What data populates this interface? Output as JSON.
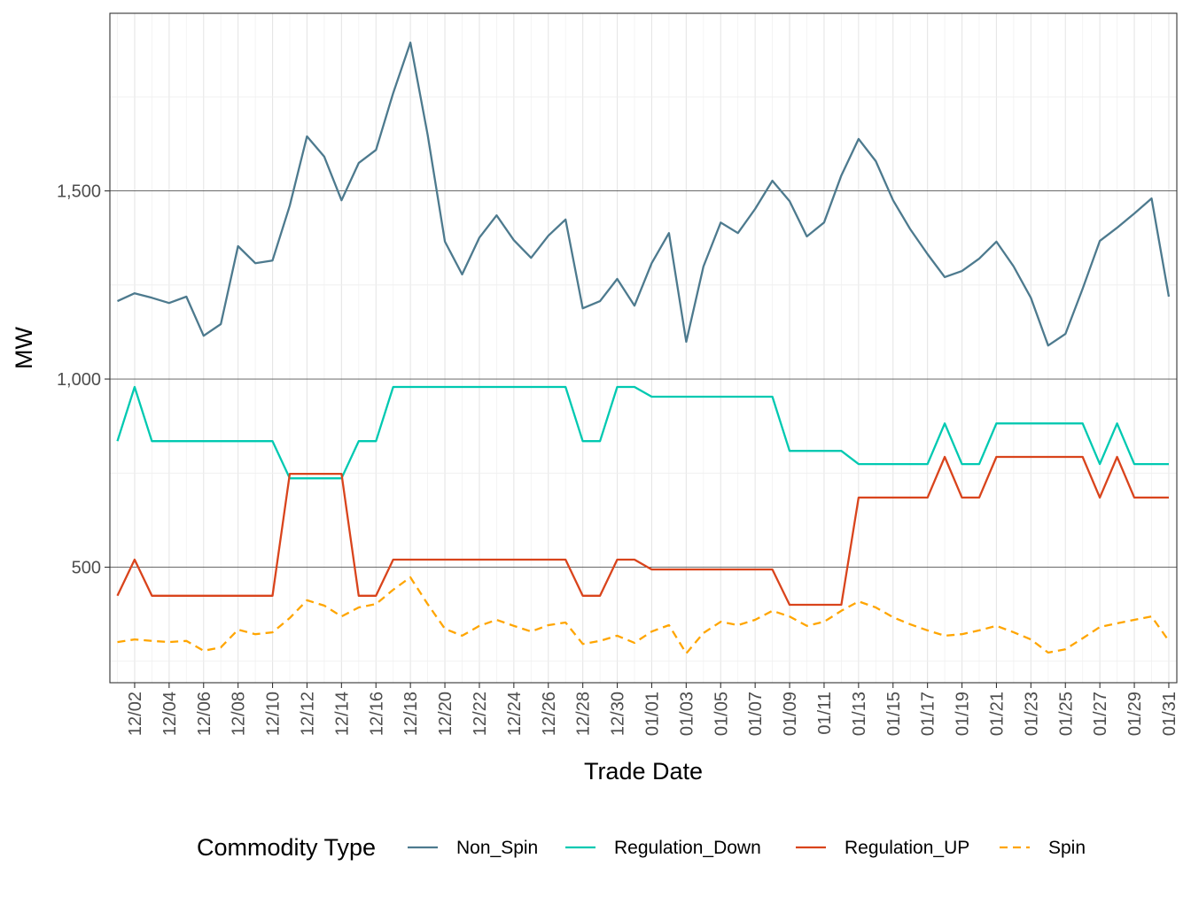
{
  "chart_data": {
    "type": "line",
    "xlabel": "Trade Date",
    "ylabel": "MW",
    "ylim": [
      193,
      1972
    ],
    "grid": true,
    "legend_placement": "bottom",
    "legend_title": "Commodity Type",
    "y_ticks": [
      500,
      1000,
      1500
    ],
    "y_tick_labels": [
      "500",
      "1,000",
      "1,500"
    ],
    "x": [
      "12/01",
      "12/02",
      "12/03",
      "12/04",
      "12/05",
      "12/06",
      "12/07",
      "12/08",
      "12/09",
      "12/10",
      "12/11",
      "12/12",
      "12/13",
      "12/14",
      "12/15",
      "12/16",
      "12/17",
      "12/18",
      "12/19",
      "12/20",
      "12/21",
      "12/22",
      "12/23",
      "12/24",
      "12/25",
      "12/26",
      "12/27",
      "12/28",
      "12/29",
      "12/30",
      "12/31",
      "01/01",
      "01/02",
      "01/03",
      "01/04",
      "01/05",
      "01/06",
      "01/07",
      "01/08",
      "01/09",
      "01/10",
      "01/11",
      "01/12",
      "01/13",
      "01/14",
      "01/15",
      "01/16",
      "01/17",
      "01/18",
      "01/19",
      "01/20",
      "01/21",
      "01/22",
      "01/23",
      "01/24",
      "01/25",
      "01/26",
      "01/27",
      "01/28",
      "01/29",
      "01/30",
      "01/31"
    ],
    "x_tick_labels": [
      "12/02",
      "12/04",
      "12/06",
      "12/08",
      "12/10",
      "12/12",
      "12/14",
      "12/16",
      "12/18",
      "12/20",
      "12/22",
      "12/24",
      "12/26",
      "12/28",
      "12/30",
      "01/01",
      "01/03",
      "01/05",
      "01/07",
      "01/09",
      "01/11",
      "01/13",
      "01/15",
      "01/17",
      "01/19",
      "01/21",
      "01/23",
      "01/25",
      "01/27",
      "01/29",
      "01/31"
    ],
    "series": [
      {
        "name": "Non_Spin",
        "color": "#4d7a8e",
        "dash": "solid",
        "values": [
          1207,
          1228,
          1216,
          1202,
          1219,
          1115,
          1146,
          1353,
          1308,
          1315,
          1461,
          1645,
          1591,
          1475,
          1574,
          1609,
          1760,
          1894,
          1649,
          1365,
          1278,
          1376,
          1435,
          1369,
          1322,
          1381,
          1424,
          1188,
          1207,
          1266,
          1195,
          1308,
          1388,
          1099,
          1299,
          1416,
          1388,
          1452,
          1527,
          1473,
          1379,
          1416,
          1541,
          1638,
          1579,
          1475,
          1398,
          1332,
          1271,
          1287,
          1320,
          1365,
          1299,
          1216,
          1089,
          1120,
          1240,
          1367,
          1402,
          1440,
          1480,
          1219
        ]
      },
      {
        "name": "Regulation_Down",
        "color": "#00c9b1",
        "dash": "solid",
        "values": [
          835,
          979,
          835,
          835,
          835,
          835,
          835,
          835,
          835,
          835,
          736,
          736,
          736,
          736,
          835,
          835,
          979,
          979,
          979,
          979,
          979,
          979,
          979,
          979,
          979,
          979,
          979,
          835,
          835,
          979,
          979,
          953,
          953,
          953,
          953,
          953,
          953,
          953,
          953,
          809,
          809,
          809,
          809,
          774,
          774,
          774,
          774,
          774,
          882,
          774,
          774,
          882,
          882,
          882,
          882,
          882,
          882,
          774,
          882,
          774,
          774,
          774
        ]
      },
      {
        "name": "Regulation_UP",
        "color": "#d9441c",
        "dash": "solid",
        "values": [
          424,
          520,
          424,
          424,
          424,
          424,
          424,
          424,
          424,
          424,
          748,
          748,
          748,
          748,
          424,
          424,
          520,
          520,
          520,
          520,
          520,
          520,
          520,
          520,
          520,
          520,
          520,
          424,
          424,
          520,
          520,
          494,
          494,
          494,
          494,
          494,
          494,
          494,
          494,
          400,
          400,
          400,
          400,
          685,
          685,
          685,
          685,
          685,
          793,
          685,
          685,
          793,
          793,
          793,
          793,
          793,
          793,
          685,
          793,
          685,
          685,
          685
        ]
      },
      {
        "name": "Spin",
        "color": "#ffa500",
        "dash": "dashed",
        "values": [
          301,
          308,
          304,
          301,
          304,
          278,
          287,
          334,
          322,
          327,
          365,
          412,
          398,
          369,
          393,
          402,
          440,
          473,
          402,
          336,
          318,
          344,
          360,
          344,
          329,
          346,
          353,
          296,
          304,
          318,
          299,
          329,
          346,
          271,
          325,
          355,
          346,
          360,
          384,
          369,
          344,
          355,
          384,
          409,
          393,
          367,
          348,
          332,
          318,
          322,
          332,
          344,
          327,
          308,
          273,
          282,
          311,
          341,
          351,
          360,
          369,
          304
        ]
      }
    ]
  }
}
